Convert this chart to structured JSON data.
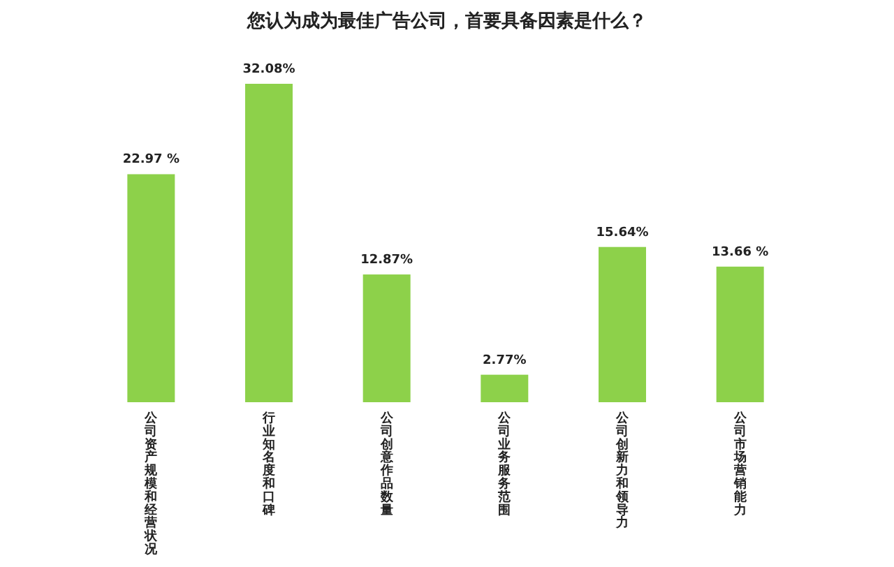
{
  "chart_data": {
    "type": "bar",
    "title": "您认为成为最佳广告公司，首要具备因素是什么？",
    "categories": [
      "公司资产规模和经营状况",
      "行业知名度和口碑",
      "公司创意作品数量",
      "公司业务服务范围",
      "公司创新力和领导力",
      "公司市场营销能力"
    ],
    "values": [
      22.97,
      32.08,
      12.87,
      2.77,
      15.64,
      13.66
    ],
    "value_labels": [
      "22.97 %",
      "32.08%",
      "12.87%",
      "2.77%",
      "15.64%",
      "13.66 %"
    ],
    "color": "#8dd14a",
    "ylim": [
      0,
      32.08
    ]
  }
}
